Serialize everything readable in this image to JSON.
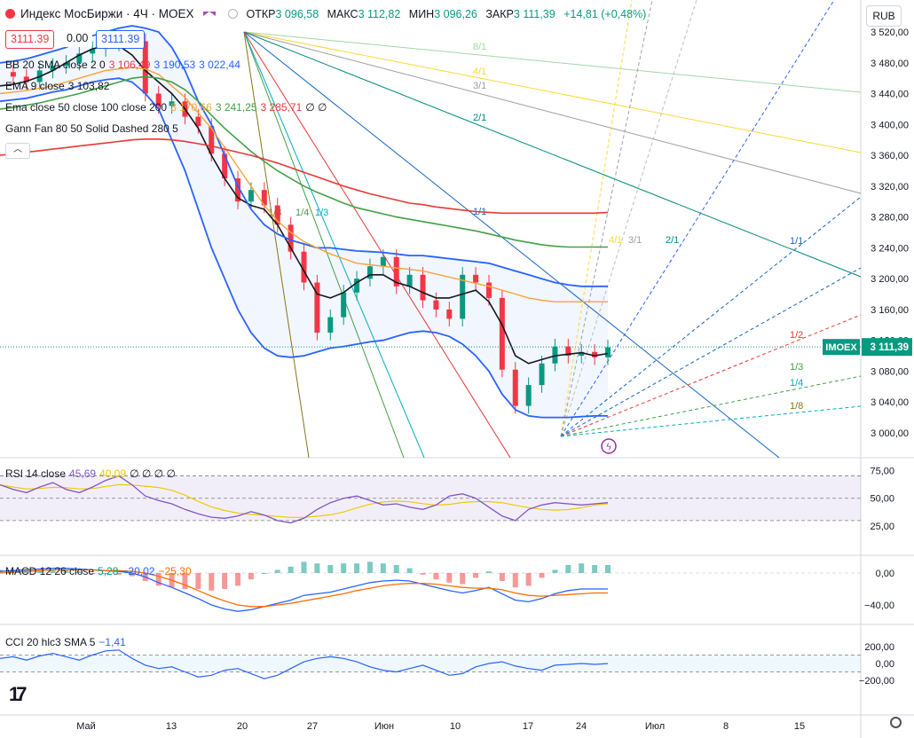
{
  "header": {
    "title": "Индекс МосБиржи · 4Ч · MOEX",
    "ohlc": [
      {
        "k": "ОТКР",
        "v": "3 096,58"
      },
      {
        "k": "МАКС",
        "v": "3 112,82"
      },
      {
        "k": "МИН",
        "v": "3 096,26"
      },
      {
        "k": "ЗАКР",
        "v": "3 111,39"
      },
      {
        "k": "",
        "v": "+14,81 (+0,48%)"
      }
    ],
    "bid": "3111.39",
    "spread": "0.00",
    "ask": "3111.39",
    "currency": "RUB"
  },
  "legends": {
    "bb": {
      "name": "BB 20 SMA close 2 0",
      "v1": "3 106,49",
      "v2": "3 190,53",
      "v3": "3 022,44"
    },
    "ema": {
      "name": "EMA 9 close",
      "v1": "3 103,82"
    },
    "ema2": {
      "name": "Ema close 50 close 100 close 200",
      "v1": "3 170,66",
      "v2": "3 241,25",
      "v3": "3 285,71",
      "v4": "∅ ∅"
    },
    "gann": {
      "name": "Gann Fan 80 50 Solid Dashed 280 5"
    },
    "rsi": {
      "name": "RSI 14 close",
      "v1": "45,69",
      "v2": "40,09",
      "v3": "∅ ∅ ∅ ∅"
    },
    "macd": {
      "name": "MACD 12 26 close",
      "v1": "5,28",
      "v2": "−20,02",
      "v3": "−25,30"
    },
    "cci": {
      "name": "CCI 20 hlc3 SMA 5",
      "v1": "−1,41"
    }
  },
  "price_label": {
    "symbol": "IMOEX",
    "value": "3 111,39"
  },
  "chart_data": {
    "type": "line",
    "title": "Индекс МосБиржи · 4Ч · MOEX",
    "y_range": [
      2970,
      3530
    ],
    "y_ticks": [
      "3 520,00",
      "3 480,00",
      "3 440,00",
      "3 400,00",
      "3 360,00",
      "3 320,00",
      "3 280,00",
      "3 240,00",
      "3 200,00",
      "3 160,00",
      "3 120,00",
      "3 080,00",
      "3 040,00",
      "3 000,00"
    ],
    "x_ticks": [
      "Май",
      "13",
      "20",
      "27",
      "Июн",
      "10",
      "17",
      "24",
      "Июл",
      "8",
      "15"
    ],
    "series": [
      {
        "name": "close",
        "color": "#131722",
        "values": [
          3468,
          3462,
          3455,
          3470,
          3476,
          3480,
          3492,
          3498,
          3505,
          3512,
          3508,
          3440,
          3424,
          3430,
          3410,
          3398,
          3362,
          3330,
          3300,
          3315,
          3295,
          3270,
          3235,
          3195,
          3130,
          3150,
          3182,
          3200,
          3216,
          3228,
          3190,
          3205,
          3172,
          3160,
          3148,
          3205,
          3195,
          3175,
          3082,
          3035,
          3062,
          3090,
          3112,
          3100,
          3105,
          3098,
          3111
        ]
      },
      {
        "name": "EMA 9",
        "color": "#131722",
        "values": [
          3450,
          3452,
          3456,
          3462,
          3470,
          3480,
          3490,
          3498,
          3502,
          3502,
          3490,
          3470,
          3455,
          3440,
          3420,
          3395,
          3360,
          3330,
          3305,
          3295,
          3290,
          3270,
          3240,
          3210,
          3180,
          3175,
          3182,
          3195,
          3205,
          3205,
          3195,
          3190,
          3182,
          3175,
          3175,
          3180,
          3185,
          3170,
          3140,
          3100,
          3090,
          3095,
          3100,
          3102,
          3104,
          3100,
          3103
        ]
      },
      {
        "name": "BB upper",
        "color": "#2962ff",
        "values": [
          3480,
          3482,
          3485,
          3490,
          3495,
          3500,
          3508,
          3515,
          3520,
          3525,
          3528,
          3525,
          3520,
          3500,
          3470,
          3430,
          3400,
          3360,
          3320,
          3290,
          3270,
          3258,
          3250,
          3245,
          3240,
          3240,
          3238,
          3236,
          3235,
          3234,
          3232,
          3230,
          3230,
          3228,
          3226,
          3224,
          3222,
          3220,
          3215,
          3210,
          3205,
          3200,
          3195,
          3192,
          3190,
          3190,
          3190
        ]
      },
      {
        "name": "BB lower",
        "color": "#2962ff",
        "values": [
          3430,
          3432,
          3434,
          3438,
          3442,
          3445,
          3450,
          3455,
          3458,
          3460,
          3455,
          3440,
          3420,
          3380,
          3340,
          3290,
          3240,
          3200,
          3160,
          3130,
          3110,
          3100,
          3098,
          3100,
          3105,
          3110,
          3112,
          3115,
          3118,
          3120,
          3125,
          3130,
          3132,
          3130,
          3125,
          3115,
          3100,
          3080,
          3050,
          3030,
          3022,
          3020,
          3020,
          3020,
          3021,
          3022,
          3022
        ]
      },
      {
        "name": "EMA 50",
        "color": "#f7a43a",
        "values": [
          3440,
          3442,
          3444,
          3447,
          3450,
          3455,
          3460,
          3465,
          3470,
          3472,
          3474,
          3472,
          3465,
          3450,
          3435,
          3415,
          3395,
          3370,
          3345,
          3320,
          3295,
          3275,
          3260,
          3248,
          3240,
          3232,
          3226,
          3220,
          3218,
          3216,
          3214,
          3212,
          3210,
          3206,
          3202,
          3198,
          3194,
          3190,
          3185,
          3180,
          3175,
          3172,
          3170,
          3170,
          3170,
          3170,
          3170
        ]
      },
      {
        "name": "EMA 100",
        "color": "#43a047",
        "values": [
          3420,
          3422,
          3425,
          3428,
          3432,
          3436,
          3440,
          3445,
          3450,
          3455,
          3460,
          3462,
          3460,
          3455,
          3445,
          3430,
          3412,
          3395,
          3380,
          3365,
          3352,
          3340,
          3330,
          3320,
          3312,
          3305,
          3298,
          3292,
          3288,
          3284,
          3280,
          3277,
          3274,
          3271,
          3268,
          3265,
          3262,
          3258,
          3254,
          3250,
          3247,
          3244,
          3242,
          3241,
          3241,
          3241,
          3241
        ]
      },
      {
        "name": "EMA 200",
        "color": "#e53935",
        "values": [
          3360,
          3362,
          3364,
          3366,
          3368,
          3370,
          3372,
          3374,
          3376,
          3378,
          3380,
          3381,
          3381,
          3380,
          3378,
          3375,
          3372,
          3368,
          3364,
          3360,
          3355,
          3350,
          3344,
          3338,
          3332,
          3326,
          3320,
          3315,
          3310,
          3306,
          3302,
          3298,
          3296,
          3293,
          3291,
          3289,
          3287,
          3286,
          3285,
          3285,
          3285,
          3285,
          3285,
          3285,
          3285,
          3285,
          3286
        ]
      }
    ],
    "gann_labels": [
      "8/1",
      "4/1",
      "3/1",
      "2/1",
      "1/1",
      "1/8",
      "1/4",
      "1/3",
      "1/2",
      "1/3",
      "1/4",
      "1/8",
      "1/1",
      "2/1",
      "3/1",
      "4/1"
    ],
    "rsi": {
      "y_ticks": [
        "75,00",
        "50,00",
        "25,00"
      ],
      "range": [
        30,
        70
      ],
      "values": [
        62,
        58,
        55,
        60,
        64,
        58,
        55,
        60,
        66,
        70,
        62,
        52,
        48,
        45,
        40,
        36,
        33,
        32,
        34,
        38,
        35,
        30,
        28,
        32,
        40,
        46,
        50,
        52,
        48,
        44,
        45,
        42,
        40,
        44,
        52,
        54,
        50,
        42,
        34,
        30,
        40,
        44,
        46,
        45,
        44,
        45,
        46
      ]
    },
    "macd": {
      "y_ticks": [
        "0,00",
        "−40,00"
      ],
      "macd": [
        2,
        3,
        4,
        5,
        6,
        6,
        5,
        4,
        3,
        2,
        0,
        -5,
        -12,
        -18,
        -25,
        -32,
        -40,
        -45,
        -48,
        -46,
        -42,
        -38,
        -34,
        -28,
        -26,
        -24,
        -20,
        -16,
        -12,
        -10,
        -9,
        -10,
        -14,
        -18,
        -22,
        -25,
        -22,
        -18,
        -26,
        -34,
        -36,
        -32,
        -26,
        -22,
        -20,
        -20,
        -20
      ],
      "signal": [
        0,
        1,
        2,
        3,
        4,
        4,
        4,
        4,
        3,
        3,
        2,
        0,
        -4,
        -9,
        -15,
        -22,
        -29,
        -35,
        -40,
        -42,
        -42,
        -40,
        -38,
        -35,
        -32,
        -29,
        -26,
        -22,
        -19,
        -16,
        -14,
        -13,
        -13,
        -14,
        -16,
        -18,
        -19,
        -19,
        -21,
        -25,
        -28,
        -29,
        -28,
        -27,
        -26,
        -25,
        -25
      ]
    },
    "cci": {
      "y_ticks": [
        "200,00",
        "0,00",
        "−200,00"
      ],
      "values": [
        60,
        80,
        40,
        90,
        120,
        80,
        40,
        100,
        150,
        160,
        60,
        -20,
        -60,
        -40,
        -100,
        -160,
        -140,
        -80,
        -60,
        -120,
        -180,
        -140,
        -60,
        20,
        60,
        80,
        60,
        20,
        -40,
        -80,
        -100,
        -60,
        -20,
        -80,
        -140,
        -120,
        -40,
        0,
        20,
        -30,
        -60,
        -80,
        -20,
        -10,
        0,
        -10,
        -1
      ]
    }
  }
}
